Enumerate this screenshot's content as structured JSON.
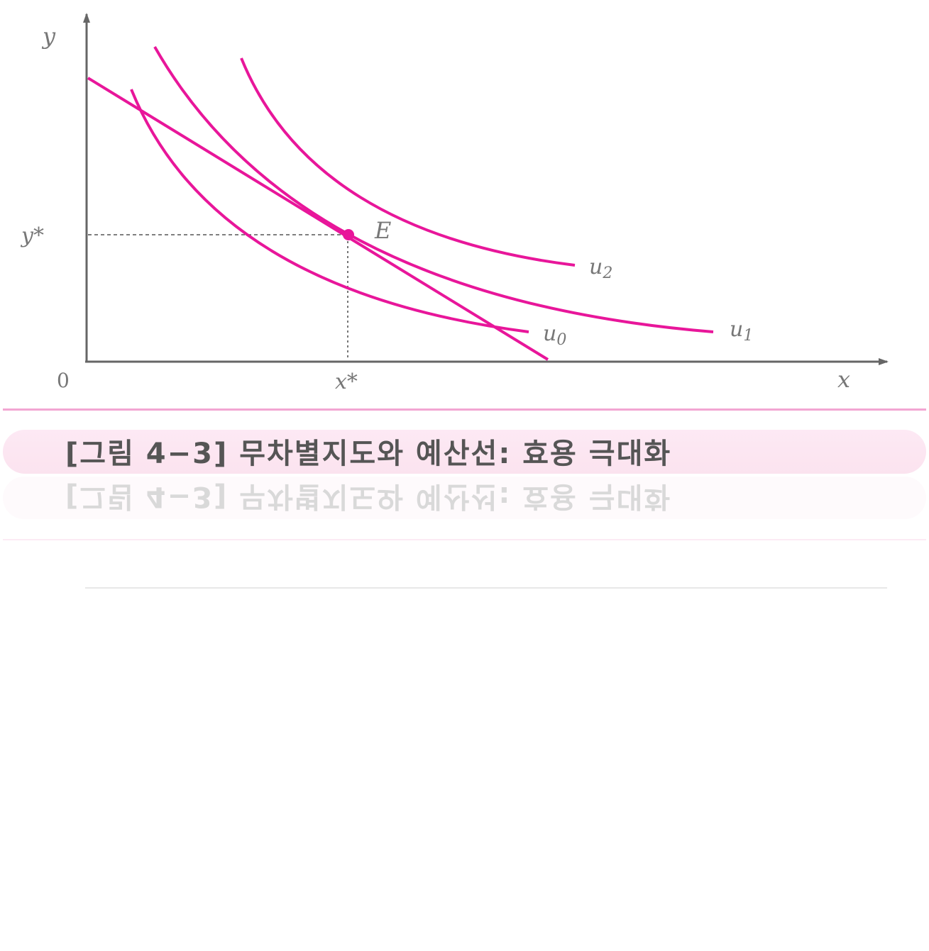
{
  "figure": {
    "y_axis_label": "y",
    "x_axis_label": "x",
    "origin_label": "0",
    "x_star_label": "x*",
    "y_star_label": "y*",
    "point_label": "E",
    "curves": [
      {
        "name": "u",
        "subscript": "0"
      },
      {
        "name": "u",
        "subscript": "1"
      },
      {
        "name": "u",
        "subscript": "2"
      }
    ],
    "line_color": "#e8169a",
    "axis_color": "#666666"
  },
  "caption": "[그림 4−3] 무차별지도와 예산선: 효용 극대화"
}
